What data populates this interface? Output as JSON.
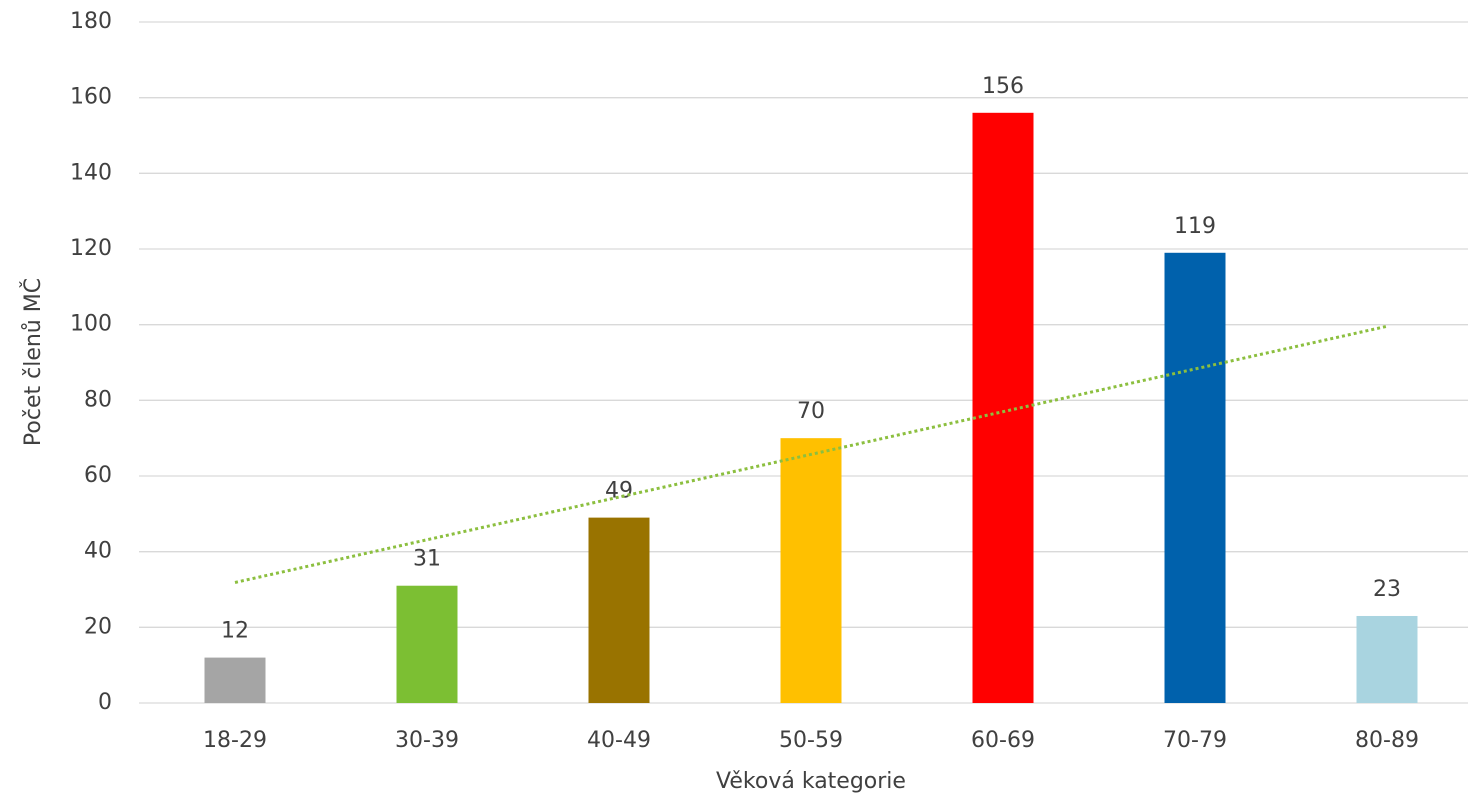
{
  "chart_data": {
    "type": "bar",
    "categories": [
      "18-29",
      "30-39",
      "40-49",
      "50-59",
      "60-69",
      "70-79",
      "80-89"
    ],
    "values": [
      12,
      31,
      49,
      70,
      156,
      119,
      23
    ],
    "colors": [
      "#a5a5a5",
      "#7cbf33",
      "#997300",
      "#ffc000",
      "#ff0000",
      "#0061ac",
      "#a9d4e0"
    ],
    "x_label": "Věková kategorie",
    "y_label": "Počet členů MČ",
    "ylim": [
      0,
      180
    ],
    "yticks": [
      0,
      20,
      40,
      60,
      80,
      100,
      120,
      140,
      160,
      180
    ],
    "grid": true,
    "trendline": "linear",
    "trendline_color": "#8cbf3f"
  }
}
